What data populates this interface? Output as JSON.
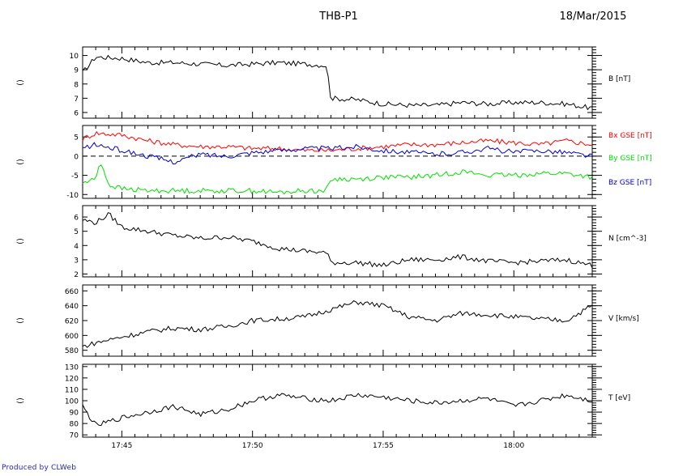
{
  "header": {
    "title": "THB-P1",
    "date": "18/Mar/2015"
  },
  "footer": {
    "credit": "Produced by CLWeb"
  },
  "colors": {
    "axis": "#000000",
    "red": "#ff0000",
    "green": "#00e000",
    "blue": "#0000cc",
    "credit": "#1f1fbf"
  },
  "chart_data": [
    {
      "type": "line",
      "ylabel": "()",
      "right_label": "B [nT]",
      "ylim": [
        5.6,
        10.6
      ],
      "yticks": [
        6,
        7,
        8,
        9,
        10
      ],
      "xlim": [
        "17:43:30",
        "18:03:00"
      ],
      "xticks": [
        "17:45",
        "17:50",
        "17:55",
        "18:00"
      ],
      "series": [
        {
          "color": "#000000",
          "x": [
            "17:43:30",
            "17:44:00",
            "17:45:00",
            "17:46:00",
            "17:47:00",
            "17:48:00",
            "17:49:00",
            "17:50:00",
            "17:51:00",
            "17:52:00",
            "17:52:50",
            "17:53:00",
            "17:54:00",
            "17:55:00",
            "17:56:00",
            "17:57:00",
            "17:58:00",
            "17:59:00",
            "18:00:00",
            "18:01:00",
            "18:02:00",
            "18:03:00"
          ],
          "values": [
            8.8,
            9.9,
            9.8,
            9.5,
            9.5,
            9.4,
            9.3,
            9.4,
            9.5,
            9.4,
            9.3,
            7.0,
            6.9,
            6.6,
            6.5,
            6.5,
            6.7,
            6.6,
            6.7,
            6.7,
            6.6,
            6.3
          ]
        }
      ]
    },
    {
      "type": "line",
      "ylabel": "()",
      "right_labels": [
        "Bx GSE [nT]",
        "By GSE [nT]",
        "Bz GSE [nT]"
      ],
      "ylim": [
        -11,
        8
      ],
      "yticks": [
        -10,
        -5,
        0,
        5
      ],
      "zero_line": "dashed",
      "xlim": [
        "17:43:30",
        "18:03:00"
      ],
      "xticks": [
        "17:45",
        "17:50",
        "17:55",
        "18:00"
      ],
      "series": [
        {
          "name": "Bx GSE [nT]",
          "color": "#ff0000",
          "x": [
            "17:43:30",
            "17:44:00",
            "17:45:00",
            "17:46:00",
            "17:47:00",
            "17:48:00",
            "17:49:00",
            "17:50:00",
            "17:51:00",
            "17:52:00",
            "17:53:00",
            "17:54:00",
            "17:55:00",
            "17:56:00",
            "17:57:00",
            "17:58:00",
            "17:59:00",
            "18:00:00",
            "18:01:00",
            "18:02:00",
            "18:03:00"
          ],
          "values": [
            4.5,
            6.0,
            5.5,
            4.0,
            3.0,
            2.5,
            2.5,
            2.0,
            2.0,
            1.5,
            1.5,
            2.0,
            2.5,
            3.0,
            3.0,
            3.5,
            4.0,
            3.5,
            3.0,
            4.0,
            3.0
          ]
        },
        {
          "name": "By GSE [nT]",
          "color": "#00e000",
          "x": [
            "17:43:30",
            "17:44:00",
            "17:44:10",
            "17:44:30",
            "17:45:00",
            "17:46:00",
            "17:47:00",
            "17:48:00",
            "17:49:00",
            "17:50:00",
            "17:51:00",
            "17:52:00",
            "17:52:50",
            "17:53:00",
            "17:54:00",
            "17:55:00",
            "17:56:00",
            "17:57:00",
            "17:58:00",
            "17:59:00",
            "18:00:00",
            "18:01:00",
            "18:02:00",
            "18:03:00"
          ],
          "values": [
            -7.0,
            -6.0,
            -1.0,
            -7.5,
            -8.5,
            -9.0,
            -9.0,
            -9.0,
            -9.0,
            -9.0,
            -9.5,
            -9.0,
            -9.0,
            -6.0,
            -6.0,
            -5.5,
            -5.5,
            -5.0,
            -4.0,
            -5.0,
            -5.0,
            -4.5,
            -4.5,
            -5.5
          ]
        },
        {
          "name": "Bz GSE [nT]",
          "color": "#0000cc",
          "x": [
            "17:43:30",
            "17:44:00",
            "17:45:00",
            "17:46:00",
            "17:47:00",
            "17:48:00",
            "17:49:00",
            "17:50:00",
            "17:51:00",
            "17:52:00",
            "17:53:00",
            "17:54:00",
            "17:55:00",
            "17:56:00",
            "17:57:00",
            "17:58:00",
            "17:59:00",
            "18:00:00",
            "18:01:00",
            "18:02:00",
            "18:03:00"
          ],
          "values": [
            2.0,
            3.0,
            1.5,
            0.0,
            -1.5,
            0.5,
            0.0,
            1.0,
            1.5,
            2.0,
            2.0,
            2.5,
            1.5,
            1.0,
            0.5,
            1.0,
            2.0,
            1.0,
            1.5,
            1.0,
            0.0
          ]
        }
      ]
    },
    {
      "type": "line",
      "ylabel": "()",
      "right_label": "N [cm^-3]",
      "ylim": [
        1.8,
        6.8
      ],
      "yticks": [
        2,
        3,
        4,
        5,
        6
      ],
      "xlim": [
        "17:43:30",
        "18:03:00"
      ],
      "xticks": [
        "17:45",
        "17:50",
        "17:55",
        "18:00"
      ],
      "series": [
        {
          "color": "#000000",
          "x": [
            "17:43:30",
            "17:44:00",
            "17:44:30",
            "17:45:00",
            "17:46:00",
            "17:47:00",
            "17:48:00",
            "17:49:00",
            "17:50:00",
            "17:51:00",
            "17:52:00",
            "17:52:50",
            "17:53:00",
            "17:54:00",
            "17:55:00",
            "17:56:00",
            "17:57:00",
            "17:58:00",
            "17:59:00",
            "18:00:00",
            "18:01:00",
            "18:02:00",
            "18:03:00"
          ],
          "values": [
            5.8,
            5.6,
            6.2,
            5.3,
            5.0,
            4.7,
            4.5,
            4.6,
            4.3,
            3.8,
            3.6,
            3.5,
            2.8,
            2.8,
            2.6,
            3.0,
            3.0,
            3.2,
            2.9,
            2.8,
            2.9,
            3.0,
            2.6
          ]
        }
      ]
    },
    {
      "type": "line",
      "ylabel": "()",
      "right_label": "V [km/s]",
      "ylim": [
        572,
        668
      ],
      "yticks": [
        580,
        600,
        620,
        640,
        660
      ],
      "xlim": [
        "17:43:30",
        "18:03:00"
      ],
      "xticks": [
        "17:45",
        "17:50",
        "17:55",
        "18:00"
      ],
      "series": [
        {
          "color": "#000000",
          "x": [
            "17:43:30",
            "17:44:00",
            "17:45:00",
            "17:46:00",
            "17:47:00",
            "17:48:00",
            "17:49:00",
            "17:50:00",
            "17:51:00",
            "17:52:00",
            "17:53:00",
            "17:54:00",
            "17:55:00",
            "17:56:00",
            "17:57:00",
            "17:58:00",
            "17:59:00",
            "18:00:00",
            "18:01:00",
            "18:02:00",
            "18:03:00"
          ],
          "values": [
            585,
            590,
            598,
            605,
            610,
            608,
            612,
            620,
            622,
            625,
            635,
            645,
            640,
            625,
            620,
            630,
            628,
            625,
            622,
            620,
            640
          ]
        }
      ]
    },
    {
      "type": "line",
      "ylabel": "()",
      "right_label": "T [eV]",
      "ylim": [
        68,
        132
      ],
      "yticks": [
        70,
        80,
        90,
        100,
        110,
        120,
        130
      ],
      "xlim": [
        "17:43:30",
        "18:03:00"
      ],
      "xticks": [
        "17:45",
        "17:50",
        "17:55",
        "18:00"
      ],
      "xticklabels": [
        "17:45",
        "17:50",
        "17:55",
        "18:00"
      ],
      "series": [
        {
          "color": "#000000",
          "x": [
            "17:43:30",
            "17:44:00",
            "17:45:00",
            "17:46:00",
            "17:47:00",
            "17:48:00",
            "17:49:00",
            "17:50:00",
            "17:51:00",
            "17:52:00",
            "17:53:00",
            "17:54:00",
            "17:55:00",
            "17:56:00",
            "17:57:00",
            "17:58:00",
            "17:59:00",
            "18:00:00",
            "18:01:00",
            "18:02:00",
            "18:03:00"
          ],
          "values": [
            95,
            78,
            85,
            90,
            95,
            88,
            92,
            100,
            105,
            102,
            100,
            105,
            103,
            100,
            98,
            100,
            102,
            95,
            100,
            105,
            100
          ]
        }
      ]
    }
  ]
}
